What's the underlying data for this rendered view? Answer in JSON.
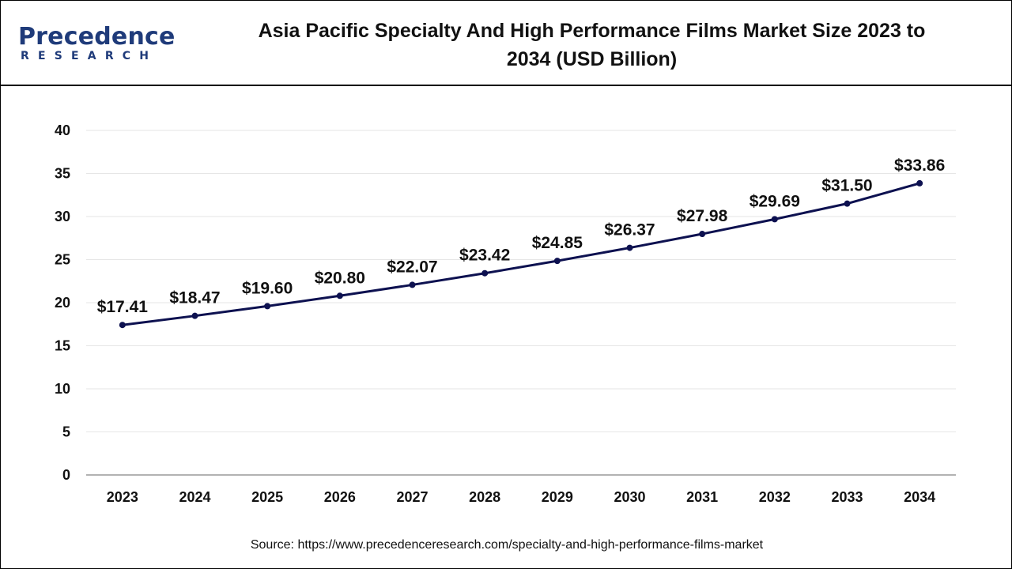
{
  "logo": {
    "brand": "Precedence",
    "sub": "RESEARCH",
    "color": "#1f3b7a"
  },
  "title": "Asia Pacific Specialty And High Performance Films Market Size 2023 to 2034 (USD Billion)",
  "source": "Source: https://www.precedenceresearch.com/specialty-and-high-performance-films-market",
  "chart_data": {
    "type": "line",
    "title": "Asia Pacific Specialty And High Performance Films Market Size 2023 to 2034 (USD Billion)",
    "xlabel": "",
    "ylabel": "",
    "categories": [
      "2023",
      "2024",
      "2025",
      "2026",
      "2027",
      "2028",
      "2029",
      "2030",
      "2031",
      "2032",
      "2033",
      "2034"
    ],
    "series": [
      {
        "values": [
          17.41,
          18.47,
          19.6,
          20.8,
          22.07,
          23.42,
          24.85,
          26.37,
          27.98,
          29.69,
          31.5,
          33.86
        ],
        "labels": [
          "$17.41",
          "$18.47",
          "$19.60",
          "$20.80",
          "$22.07",
          "$23.42",
          "$24.85",
          "$26.37",
          "$27.98",
          "$29.69",
          "$31.50",
          "$33.86"
        ],
        "color": "#0d1150"
      }
    ],
    "ylim": [
      0,
      40
    ],
    "yticks": [
      0,
      5,
      10,
      15,
      20,
      25,
      30,
      35,
      40
    ],
    "grid": true,
    "legend": "none"
  }
}
